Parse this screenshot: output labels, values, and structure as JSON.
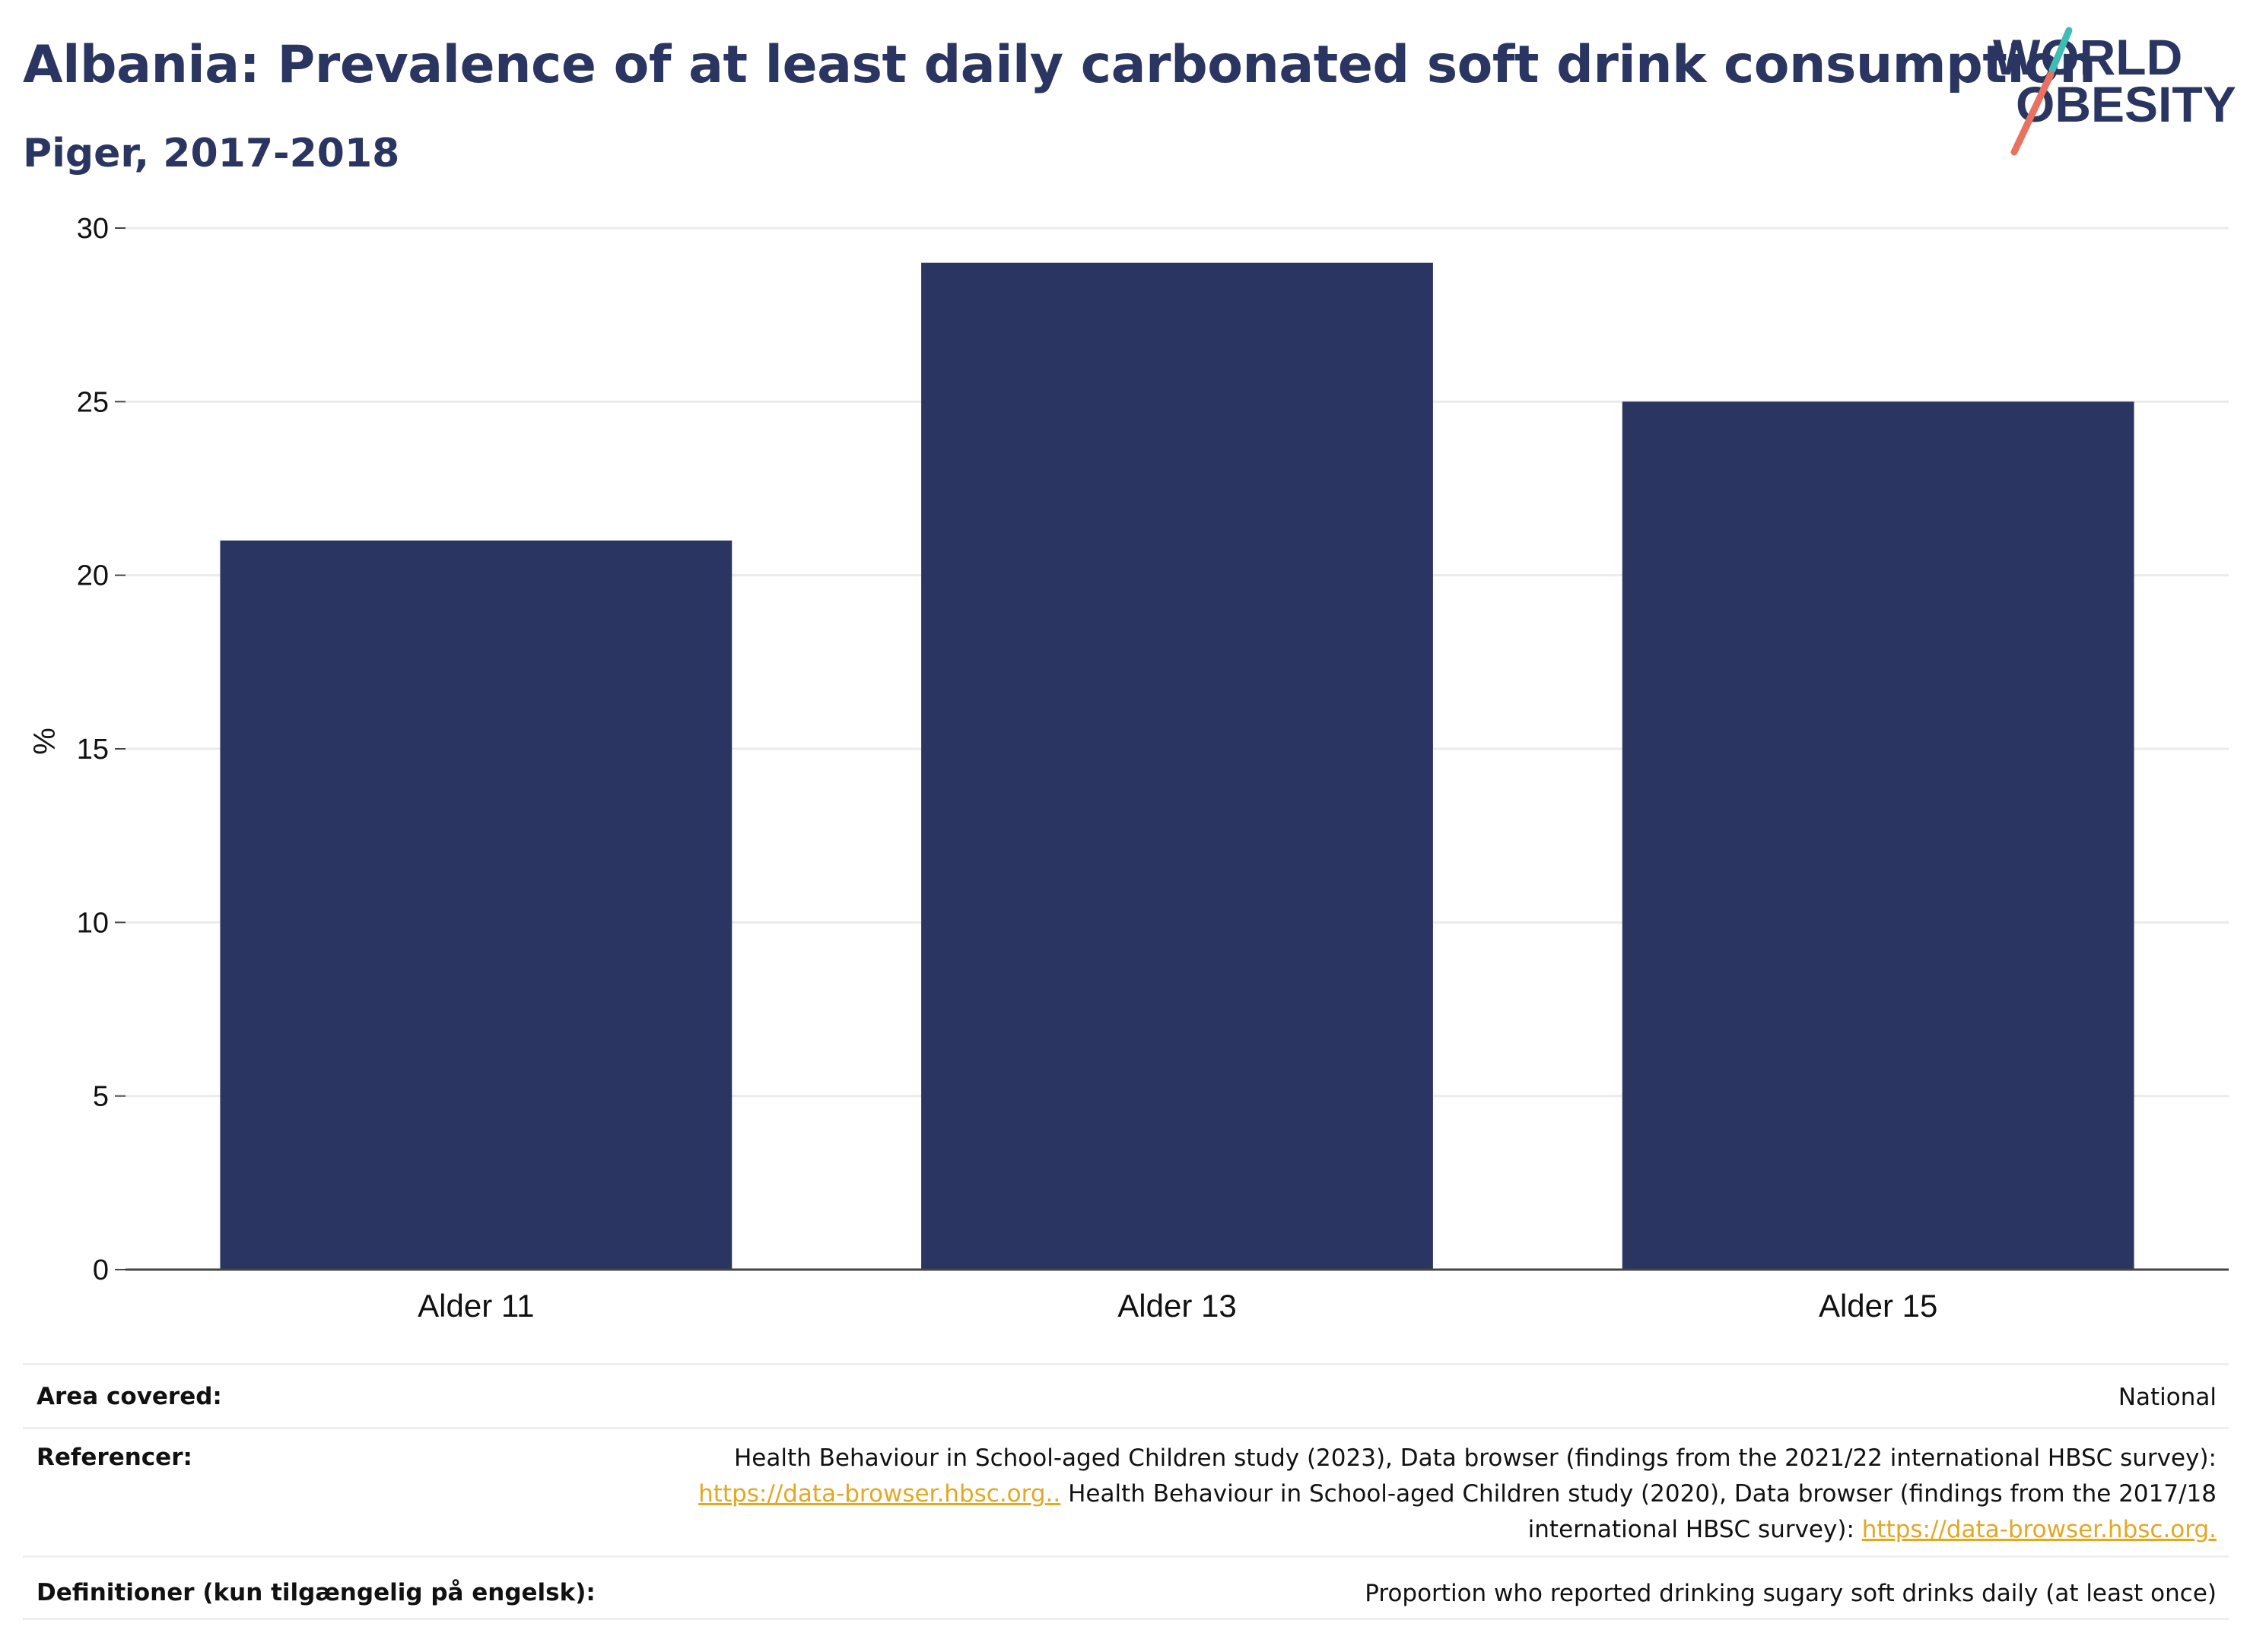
{
  "header": {
    "title": "Albania: Prevalence of at least daily carbonated soft drink consumption",
    "subtitle": "Piger, 2017-2018"
  },
  "logo": {
    "line1": "WORLD",
    "line2": "OBESITY",
    "accent_teal": "#3fbcb3",
    "accent_coral": "#e8725f"
  },
  "colors": {
    "bar": "#2a3561",
    "grid": "#ebebeb",
    "axis": "#444444",
    "link": "#e3a822"
  },
  "chart_data": {
    "type": "bar",
    "title": "Albania: Prevalence of at least daily carbonated soft drink consumption",
    "subtitle": "Piger, 2017-2018",
    "categories": [
      "Alder 11",
      "Alder 13",
      "Alder 15"
    ],
    "values": [
      21,
      29,
      25
    ],
    "xlabel": "",
    "ylabel": "%",
    "ylim": [
      0,
      30
    ],
    "yticks": [
      0,
      5,
      10,
      15,
      20,
      25,
      30
    ],
    "grid": true,
    "legend": "none"
  },
  "footer": {
    "area_label": "Area covered:",
    "area_value": "National",
    "refs_label": "Referencer:",
    "refs_line1": "Health Behaviour in School-aged Children study (2023), Data browser (findings from the 2021/22 international HBSC survey):",
    "refs_link1": "https://data-browser.hbsc.org..",
    "refs_line2": " Health Behaviour in School-aged Children study (2020), Data browser (findings from the 2017/18",
    "refs_line3": "international HBSC survey): ",
    "refs_link2": "https://data-browser.hbsc.org.",
    "defs_label": "Definitioner (kun tilgængelig på engelsk):",
    "defs_value": "Proportion who reported drinking sugary soft drinks daily (at least once)"
  }
}
